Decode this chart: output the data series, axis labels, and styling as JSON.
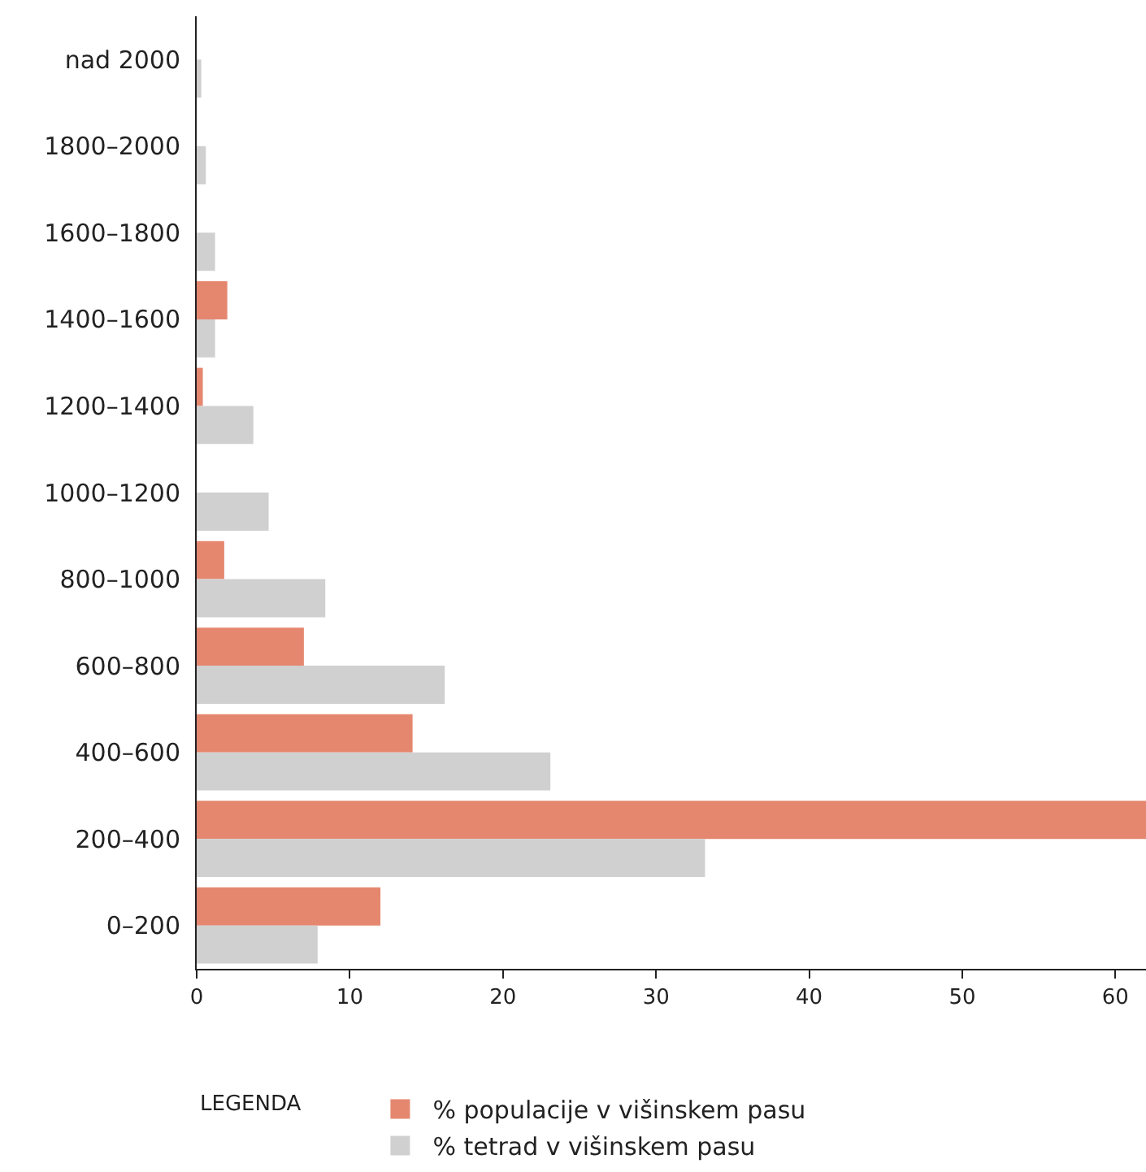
{
  "chart_data": {
    "type": "bar",
    "orientation": "horizontal",
    "categories": [
      "nad 2000",
      "1800–2000",
      "1600–1800",
      "1400–1600",
      "1200–1400",
      "1000–1200",
      "800–1000",
      "600–800",
      "400–600",
      "200–400",
      "0–200"
    ],
    "series": [
      {
        "name": "% populacije v višinskem pasu",
        "color": "#e5876f",
        "values": [
          null,
          null,
          null,
          2.0,
          0.4,
          null,
          1.8,
          7.0,
          14.1,
          62,
          12.0
        ]
      },
      {
        "name": "% tetrad v višinskem pasu",
        "color": "#d0d0d0",
        "values": [
          0.3,
          0.6,
          1.2,
          1.2,
          3.7,
          4.7,
          8.4,
          16.2,
          23.1,
          33.2,
          7.9
        ]
      }
    ],
    "xlim": [
      0,
      62
    ],
    "xticks": [
      0,
      10,
      20,
      30,
      40,
      50,
      60
    ],
    "grid": false,
    "legend": "bottom",
    "legend_title": "LEGENDA"
  }
}
